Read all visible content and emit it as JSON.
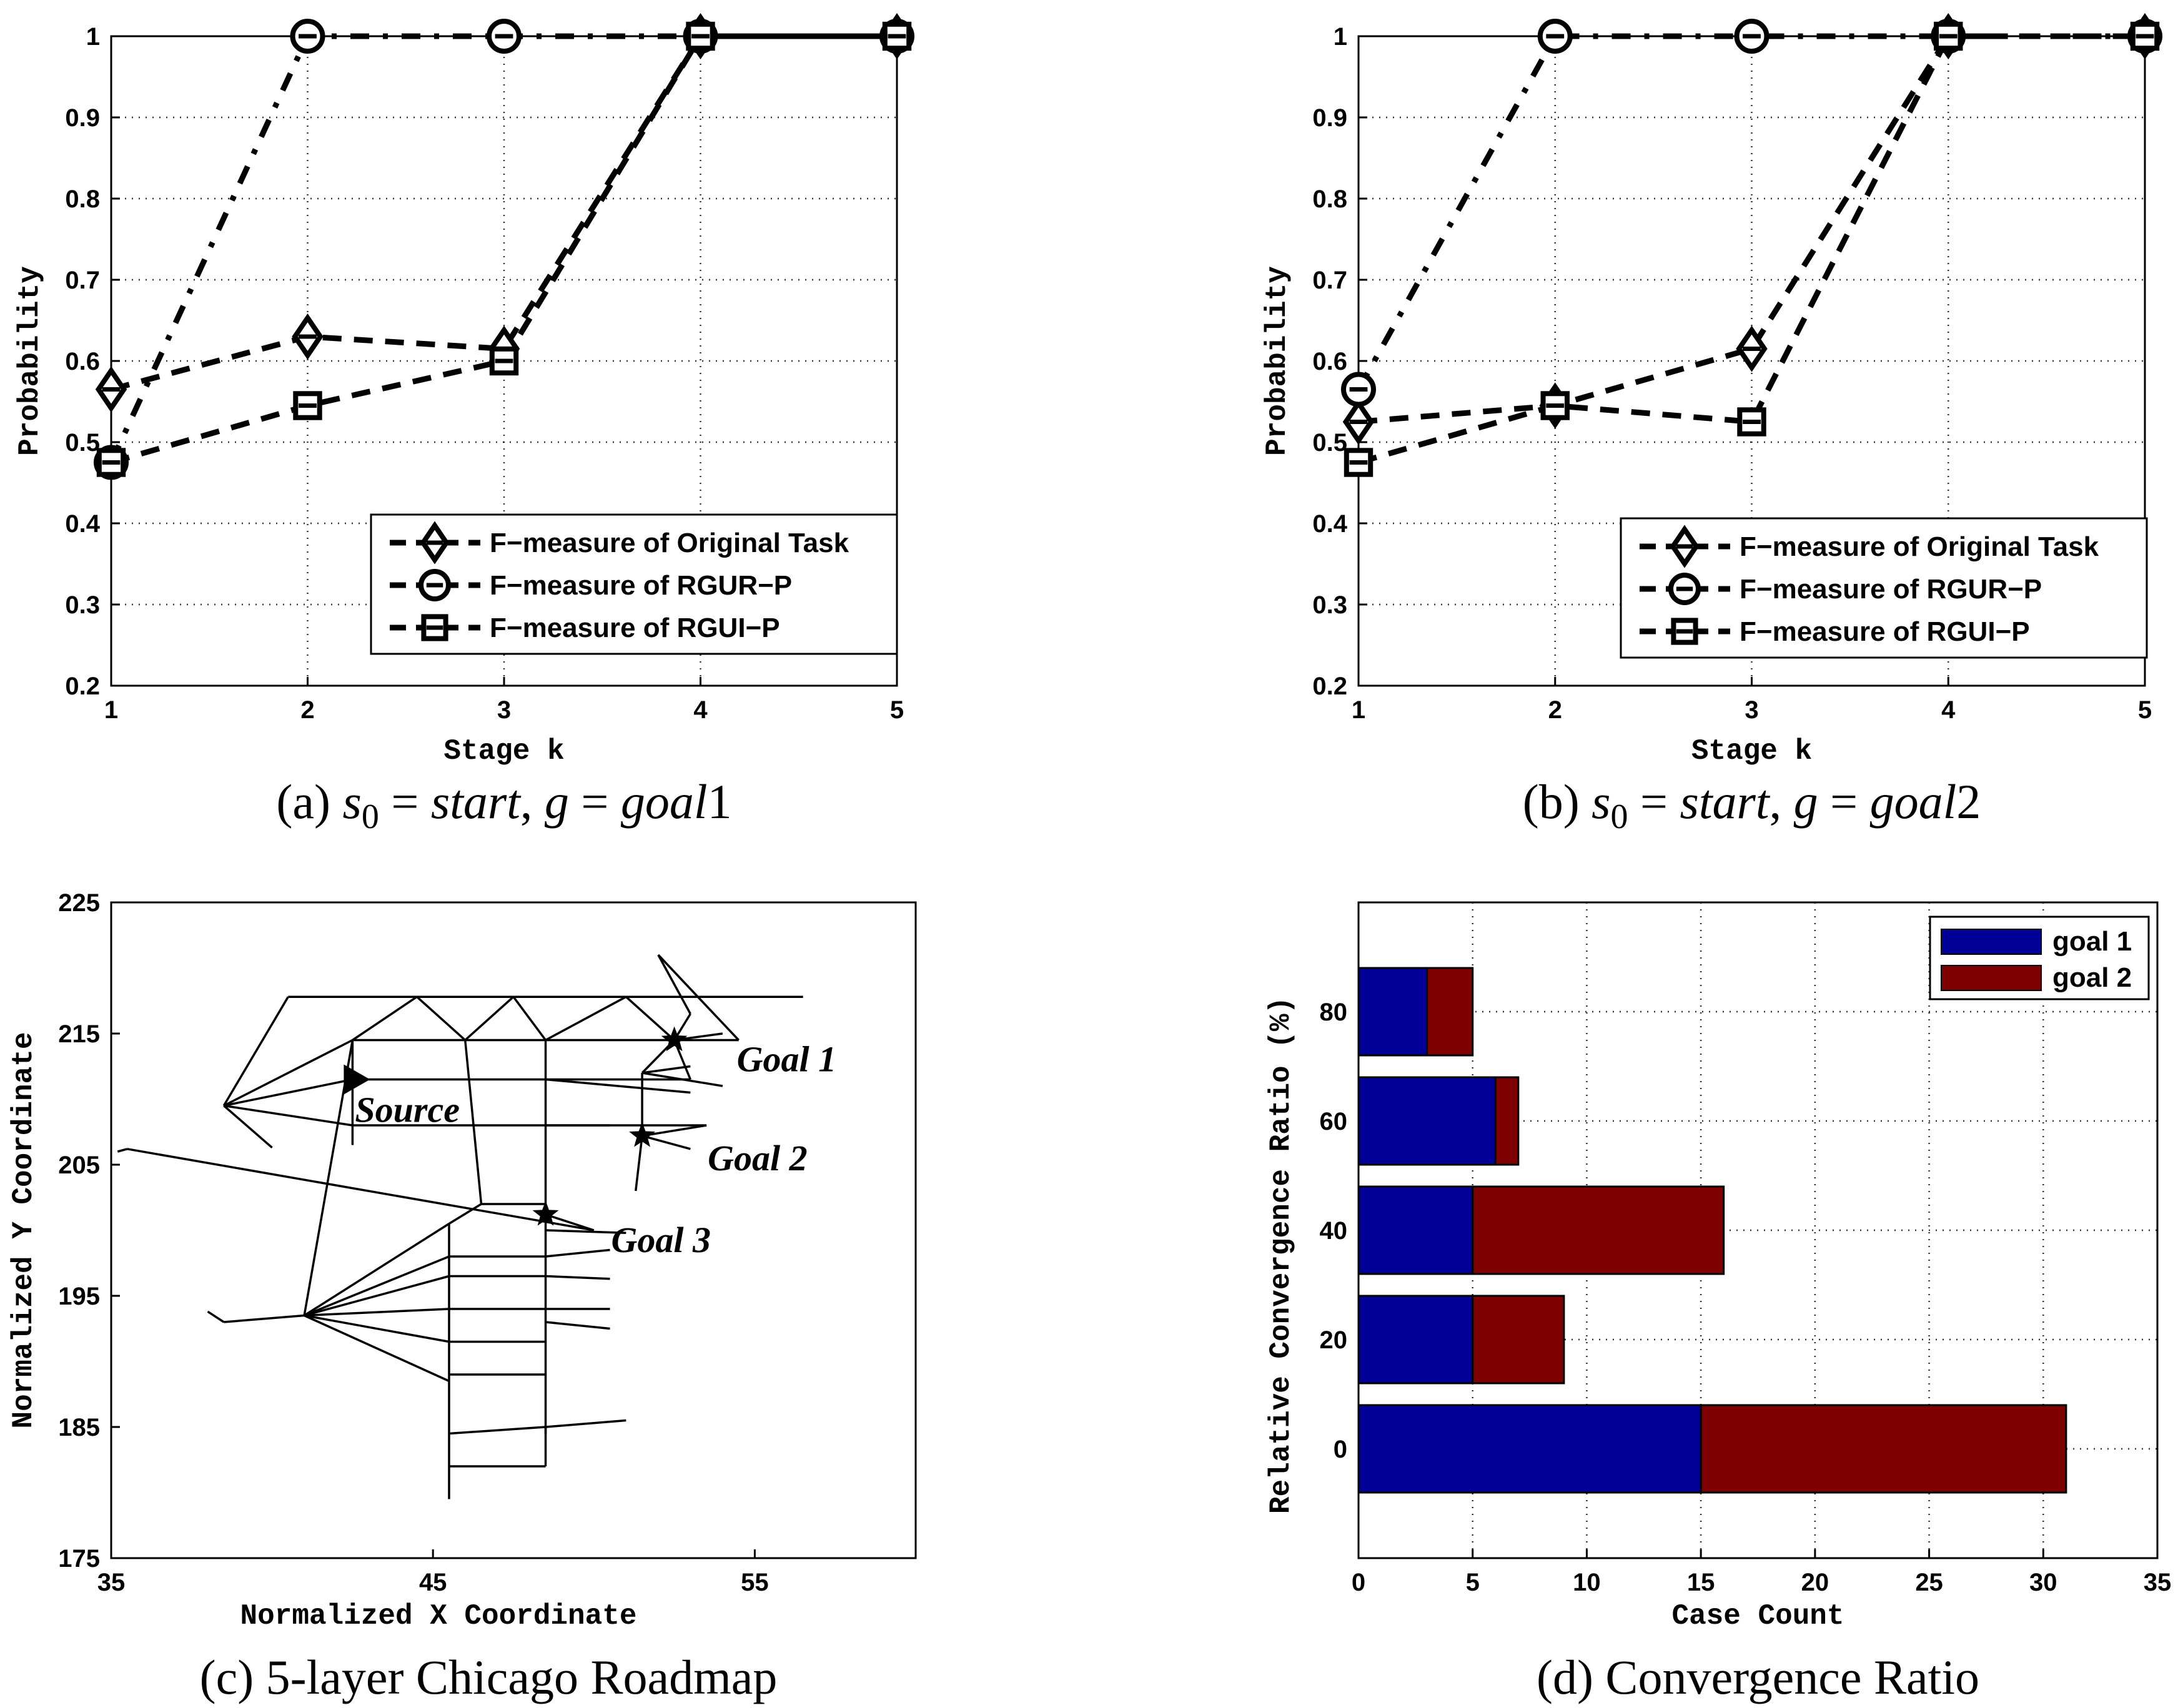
{
  "chart_data": [
    {
      "type": "line",
      "panel_caption": "(a)",
      "caption_math": [
        "s",
        "0",
        " = ",
        "start",
        ", ",
        "g",
        " = ",
        "goal",
        "1"
      ],
      "xlabel": "Stage k",
      "ylabel": "Probability",
      "xlim": [
        1,
        5
      ],
      "ylim": [
        0.2,
        1
      ],
      "xticks": [
        1,
        2,
        3,
        4,
        5
      ],
      "yticks": [
        0.2,
        0.3,
        0.4,
        0.5,
        0.6,
        0.7,
        0.8,
        0.9,
        1
      ],
      "grid": true,
      "legend_position": "bottom-right",
      "x": [
        1,
        2,
        3,
        4,
        5
      ],
      "series": [
        {
          "name": "F−measure of Original Task",
          "marker": "diamond",
          "values": [
            0.565,
            0.63,
            0.615,
            1,
            1
          ]
        },
        {
          "name": "F−measure of RGUR−P",
          "marker": "circle",
          "values": [
            0.475,
            1,
            1,
            1,
            1
          ]
        },
        {
          "name": "F−measure of RGUI−P",
          "marker": "square",
          "values": [
            0.475,
            0.545,
            0.6,
            1,
            1
          ]
        }
      ]
    },
    {
      "type": "line",
      "panel_caption": "(b)",
      "caption_math": [
        "s",
        "0",
        " = ",
        "start",
        ", ",
        "g",
        " = ",
        "goal",
        "2"
      ],
      "xlabel": "Stage k",
      "ylabel": "Probability",
      "xlim": [
        1,
        5
      ],
      "ylim": [
        0.2,
        1
      ],
      "xticks": [
        1,
        2,
        3,
        4,
        5
      ],
      "yticks": [
        0.2,
        0.3,
        0.4,
        0.5,
        0.6,
        0.7,
        0.8,
        0.9,
        1
      ],
      "grid": true,
      "legend_position": "bottom-right",
      "x": [
        1,
        2,
        3,
        4,
        5
      ],
      "series": [
        {
          "name": "F−measure of Original Task",
          "marker": "diamond",
          "values": [
            0.525,
            0.545,
            0.615,
            1,
            1
          ]
        },
        {
          "name": "F−measure of RGUR−P",
          "marker": "circle",
          "values": [
            0.565,
            1,
            1,
            1,
            1
          ]
        },
        {
          "name": "F−measure of RGUI−P",
          "marker": "square",
          "values": [
            0.475,
            0.545,
            0.525,
            1,
            1
          ]
        }
      ]
    },
    {
      "type": "scatter",
      "panel_caption": "(c) 5-layer Chicago Roadmap",
      "xlabel": "Normalized X Coordinate",
      "ylabel": "Normalized Y Coordinate",
      "xlim": [
        35,
        60
      ],
      "ylim": [
        175,
        225
      ],
      "xticks": [
        35,
        45,
        55
      ],
      "yticks": [
        175,
        185,
        195,
        205,
        215,
        225
      ],
      "grid": false,
      "points": [
        {
          "label": "Source",
          "marker": "triangle",
          "x": 42.5,
          "y": 211.5
        },
        {
          "label": "Goal 1",
          "marker": "star",
          "x": 52.5,
          "y": 214.5
        },
        {
          "label": "Goal 2",
          "marker": "star",
          "x": 51.5,
          "y": 207.2
        },
        {
          "label": "Goal 3",
          "marker": "star",
          "x": 48.5,
          "y": 201.2
        }
      ],
      "edges": [
        [
          [
            40.5,
            217.8
          ],
          [
            56.5,
            217.8
          ]
        ],
        [
          [
            42.5,
            214.5
          ],
          [
            54.5,
            214.5
          ]
        ],
        [
          [
            42.5,
            211.5
          ],
          [
            53,
            211.5
          ]
        ],
        [
          [
            42.5,
            208
          ],
          [
            50.5,
            208
          ]
        ],
        [
          [
            38.5,
            209.5
          ],
          [
            42.5,
            211.5
          ]
        ],
        [
          [
            38.5,
            209.5
          ],
          [
            42.5,
            214.5
          ]
        ],
        [
          [
            38.5,
            209.5
          ],
          [
            40.5,
            217.8
          ]
        ],
        [
          [
            38.5,
            209.5
          ],
          [
            42.5,
            208
          ]
        ],
        [
          [
            38.5,
            209.5
          ],
          [
            40,
            206.3
          ]
        ],
        [
          [
            42.5,
            214.5
          ],
          [
            42.5,
            206.5
          ]
        ],
        [
          [
            42.5,
            214.5
          ],
          [
            44.5,
            217.8
          ]
        ],
        [
          [
            44.5,
            217.8
          ],
          [
            46,
            214.5
          ]
        ],
        [
          [
            46,
            214.5
          ],
          [
            47.5,
            217.8
          ]
        ],
        [
          [
            47.5,
            217.8
          ],
          [
            48.5,
            214.5
          ]
        ],
        [
          [
            48.5,
            214.5
          ],
          [
            51,
            217.8
          ]
        ],
        [
          [
            51,
            217.8
          ],
          [
            52.5,
            214.5
          ]
        ],
        [
          [
            52.5,
            214.5
          ],
          [
            54,
            215
          ]
        ],
        [
          [
            52.5,
            214.5
          ],
          [
            53,
            216.5
          ]
        ],
        [
          [
            52.5,
            214.5
          ],
          [
            53,
            211.5
          ]
        ],
        [
          [
            52.5,
            214.5
          ],
          [
            51.5,
            212
          ]
        ],
        [
          [
            53,
            216.5
          ],
          [
            52,
            221
          ]
        ],
        [
          [
            52,
            221
          ],
          [
            54.5,
            214.5
          ]
        ],
        [
          [
            46,
            214.5
          ],
          [
            46.5,
            202
          ]
        ],
        [
          [
            48.5,
            214.5
          ],
          [
            48.5,
            201.2
          ]
        ],
        [
          [
            42.5,
            214.5
          ],
          [
            41,
            193.5
          ]
        ],
        [
          [
            48.5,
            211.5
          ],
          [
            53,
            210.5
          ]
        ],
        [
          [
            48.5,
            208
          ],
          [
            53.5,
            208
          ]
        ],
        [
          [
            53.5,
            208
          ],
          [
            51.5,
            207.2
          ]
        ],
        [
          [
            51.5,
            207.2
          ],
          [
            51.5,
            212
          ]
        ],
        [
          [
            51.5,
            212
          ],
          [
            53,
            212.5
          ]
        ],
        [
          [
            51.5,
            212
          ],
          [
            54,
            211
          ]
        ],
        [
          [
            51.5,
            207.2
          ],
          [
            53,
            206.2
          ]
        ],
        [
          [
            51.5,
            207.2
          ],
          [
            51.3,
            203
          ]
        ],
        [
          [
            35.5,
            206.2
          ],
          [
            50,
            200
          ]
        ],
        [
          [
            35.5,
            206.2
          ],
          [
            35.2,
            206
          ]
        ],
        [
          [
            46.5,
            202
          ],
          [
            48.5,
            202
          ]
        ],
        [
          [
            46.5,
            202
          ],
          [
            45.5,
            200.5
          ]
        ],
        [
          [
            45.5,
            200.5
          ],
          [
            45.5,
            188.5
          ]
        ],
        [
          [
            48.5,
            201.2
          ],
          [
            48.5,
            184.5
          ]
        ],
        [
          [
            48.5,
            201.2
          ],
          [
            50,
            200
          ]
        ],
        [
          [
            48.5,
            200
          ],
          [
            51,
            199.8
          ]
        ],
        [
          [
            41,
            193.5
          ],
          [
            45.5,
            200.5
          ]
        ],
        [
          [
            41,
            193.5
          ],
          [
            45.5,
            198
          ]
        ],
        [
          [
            41,
            193.5
          ],
          [
            45.5,
            196.5
          ]
        ],
        [
          [
            41,
            193.5
          ],
          [
            45.5,
            194
          ]
        ],
        [
          [
            41,
            193.5
          ],
          [
            45.5,
            191.5
          ]
        ],
        [
          [
            41,
            193.5
          ],
          [
            45.5,
            188.5
          ]
        ],
        [
          [
            41,
            193.5
          ],
          [
            38.5,
            193
          ]
        ],
        [
          [
            38.5,
            193
          ],
          [
            38,
            193.8
          ]
        ],
        [
          [
            45.5,
            198
          ],
          [
            48.5,
            198
          ]
        ],
        [
          [
            48.5,
            198
          ],
          [
            50.5,
            198.5
          ]
        ],
        [
          [
            45.5,
            196.5
          ],
          [
            48.5,
            196.5
          ]
        ],
        [
          [
            48.5,
            196.5
          ],
          [
            50.5,
            196.3
          ]
        ],
        [
          [
            45.5,
            194
          ],
          [
            48.5,
            194
          ]
        ],
        [
          [
            48.5,
            194
          ],
          [
            50.5,
            194
          ]
        ],
        [
          [
            48.5,
            193
          ],
          [
            50.5,
            192.5
          ]
        ],
        [
          [
            45.5,
            191.5
          ],
          [
            48.5,
            191.5
          ]
        ],
        [
          [
            45.5,
            189
          ],
          [
            48.5,
            189
          ]
        ],
        [
          [
            45.5,
            188.5
          ],
          [
            45.5,
            184.5
          ]
        ],
        [
          [
            45.5,
            184.5
          ],
          [
            48.5,
            185
          ]
        ],
        [
          [
            48.5,
            185
          ],
          [
            51,
            185.5
          ]
        ],
        [
          [
            45.5,
            184.5
          ],
          [
            45.5,
            179.5
          ]
        ],
        [
          [
            45.5,
            182
          ],
          [
            48.5,
            182
          ]
        ],
        [
          [
            48.5,
            185
          ],
          [
            48.5,
            182
          ]
        ]
      ]
    },
    {
      "type": "bar",
      "orientation": "horizontal",
      "stacked": true,
      "panel_caption": "(d) Convergence Ratio",
      "xlabel": "Case Count",
      "ylabel": "Relative Convergence Ratio  (%)",
      "xlim": [
        0,
        35
      ],
      "ylim": [
        -20,
        100
      ],
      "xticks": [
        0,
        5,
        10,
        15,
        20,
        25,
        30,
        35
      ],
      "categories": [
        0,
        20,
        40,
        60,
        80
      ],
      "grid": true,
      "legend_position": "top-right",
      "series": [
        {
          "name": "goal 1",
          "color": "#000096",
          "values": [
            15,
            5,
            5,
            6,
            3
          ]
        },
        {
          "name": "goal 2",
          "color": "#7f0000",
          "values": [
            16,
            4,
            11,
            1,
            2
          ]
        }
      ]
    }
  ]
}
